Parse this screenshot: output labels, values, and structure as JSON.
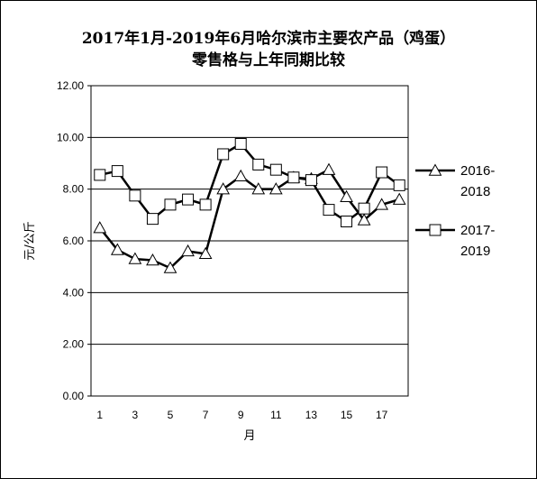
{
  "chart_data": {
    "type": "line",
    "title_line1": "2017年1月-2019年6月哈尔滨市主要农产品（鸡蛋）",
    "title_line2": "零售格与上年同期比较",
    "xlabel": "月",
    "ylabel": "元/公斤",
    "ylim": [
      0,
      12
    ],
    "y_ticks": [
      "0.00",
      "2.00",
      "4.00",
      "6.00",
      "8.00",
      "10.00",
      "12.00"
    ],
    "x_ticks": [
      "1",
      "3",
      "5",
      "7",
      "9",
      "11",
      "13",
      "15",
      "17"
    ],
    "x": [
      1,
      2,
      3,
      4,
      5,
      6,
      7,
      8,
      9,
      10,
      11,
      12,
      13,
      14,
      15,
      16,
      17,
      18
    ],
    "grid": "horizontal",
    "legend_position": "right",
    "series": [
      {
        "name": "2016-2018",
        "name_line1": "2016-",
        "name_line2": "2018",
        "marker": "triangle",
        "values": [
          6.5,
          5.65,
          5.3,
          5.25,
          4.95,
          5.6,
          5.5,
          8.0,
          8.5,
          8.0,
          8.0,
          8.45,
          8.4,
          8.75,
          7.7,
          6.8,
          7.4,
          7.6
        ]
      },
      {
        "name": "2017-2019",
        "name_line1": "2017-",
        "name_line2": "2019",
        "marker": "square",
        "values": [
          8.55,
          8.7,
          7.75,
          6.85,
          7.4,
          7.6,
          7.4,
          9.35,
          9.75,
          8.95,
          8.75,
          8.45,
          8.35,
          7.2,
          6.75,
          7.25,
          8.65,
          8.15
        ]
      }
    ]
  }
}
